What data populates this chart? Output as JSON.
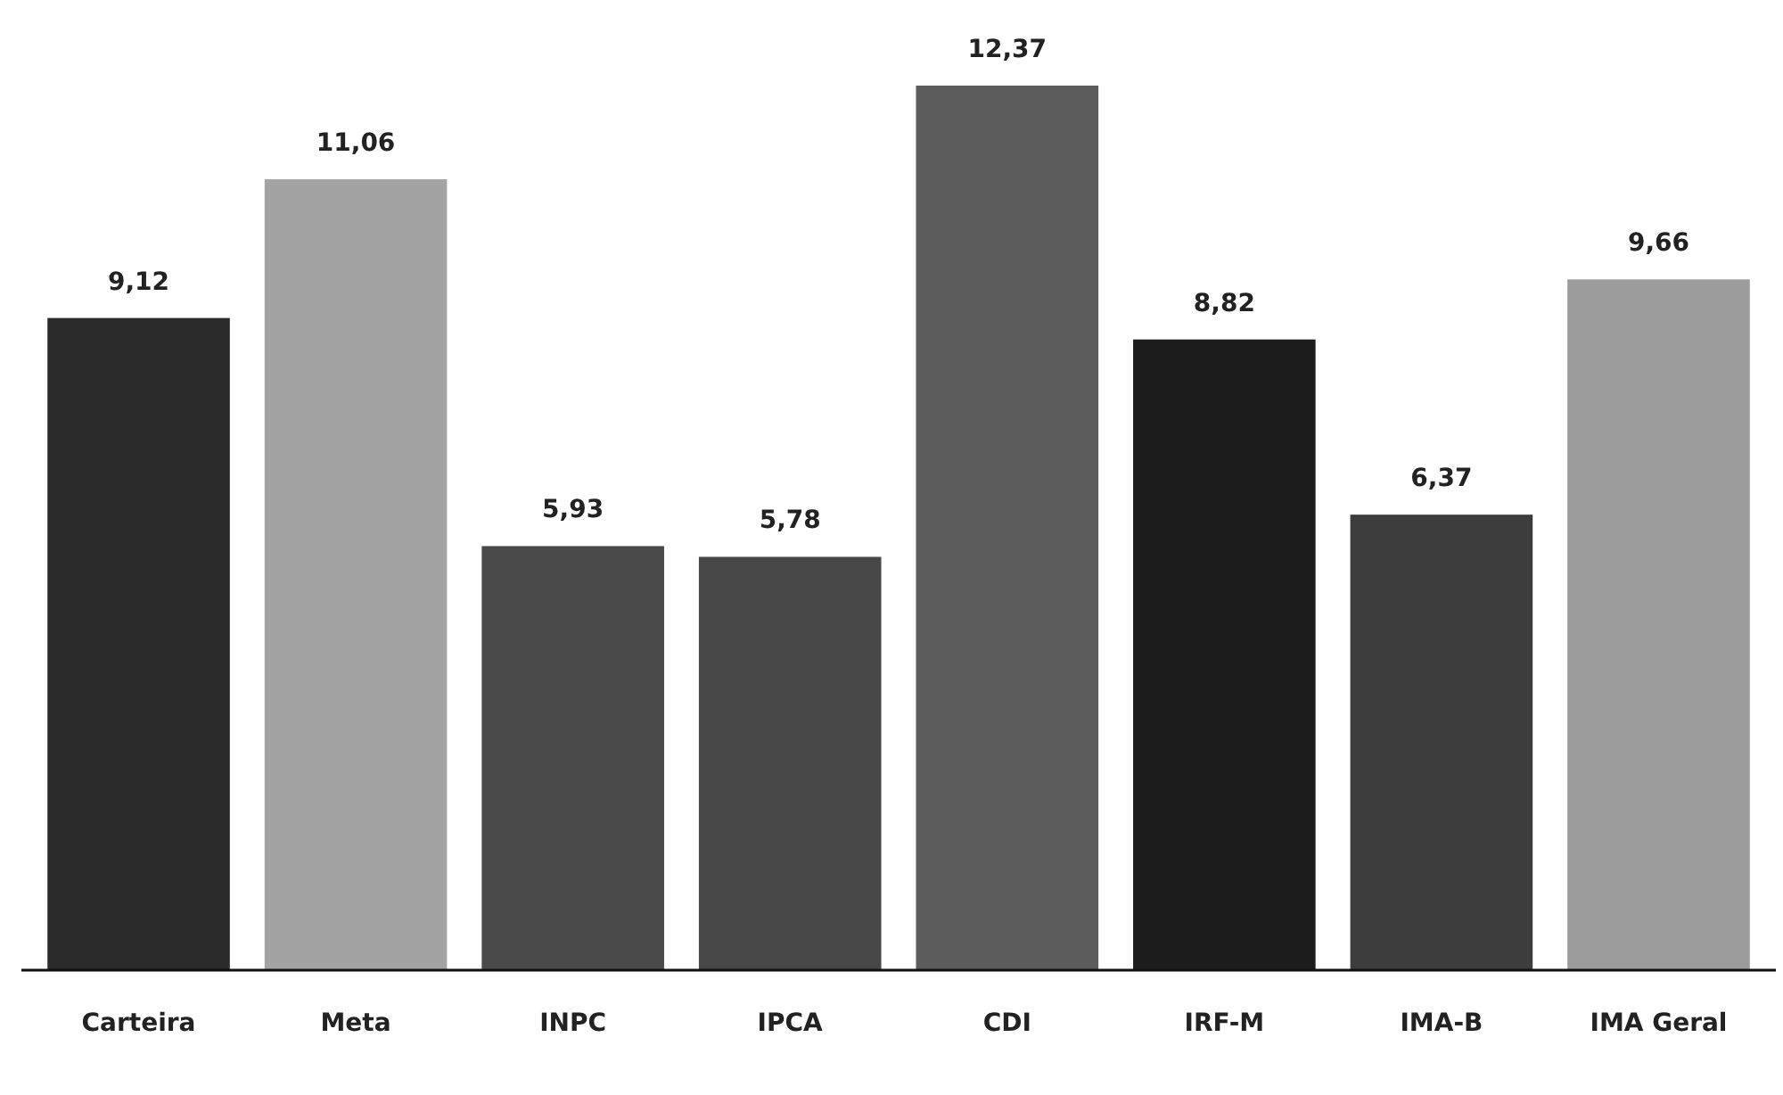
{
  "chart_data": {
    "type": "bar",
    "categories": [
      "Carteira",
      "Meta",
      "INPC",
      "IPCA",
      "CDI",
      "IRF-M",
      "IMA-B",
      "IMA Geral"
    ],
    "values": [
      9.12,
      11.06,
      5.93,
      5.78,
      12.37,
      8.82,
      6.37,
      9.66
    ],
    "value_labels": [
      "9,12",
      "11,06",
      "5,93",
      "5,78",
      "12,37",
      "8,82",
      "6,37",
      "9,66"
    ],
    "colors": [
      "#2b2b2b",
      "#a3a3a3",
      "#4a4a4a",
      "#474747",
      "#5c5c5c",
      "#1c1c1c",
      "#3d3d3d",
      "#9c9c9c"
    ]
  }
}
